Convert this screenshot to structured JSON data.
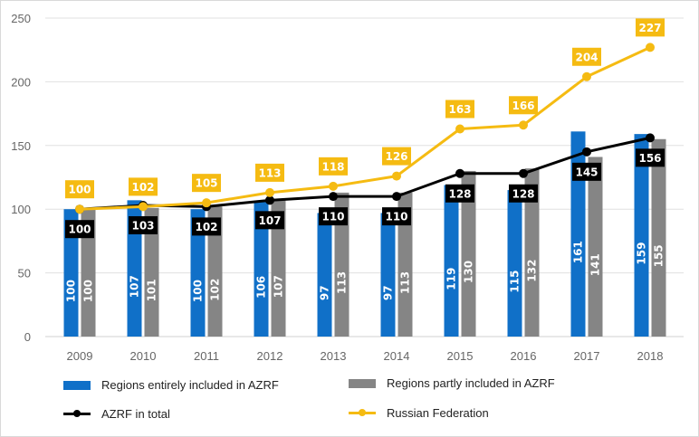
{
  "chart_data": {
    "type": "bar",
    "title": "",
    "xlabel": "",
    "ylabel": "",
    "ylim": [
      0,
      250
    ],
    "yticks": [
      0,
      50,
      100,
      150,
      200,
      250
    ],
    "grid": true,
    "legend_position": "bottom",
    "categories": [
      "2009",
      "2010",
      "2011",
      "2012",
      "2013",
      "2014",
      "2015",
      "2016",
      "2017",
      "2018"
    ],
    "series": [
      {
        "name": "Regions entirely included in AZRF",
        "kind": "bar",
        "color": "#1070c8",
        "values": [
          100,
          107,
          100,
          106,
          97,
          97,
          119,
          115,
          161,
          159
        ]
      },
      {
        "name": "Regions partly included in AZRF",
        "kind": "bar",
        "color": "#858585",
        "values": [
          100,
          101,
          102,
          107,
          113,
          113,
          130,
          132,
          141,
          155
        ]
      },
      {
        "name": "AZRF in total",
        "kind": "line",
        "color": "#000000",
        "values": [
          100,
          103,
          102,
          107,
          110,
          110,
          128,
          128,
          145,
          156
        ]
      },
      {
        "name": "Russian Federation",
        "kind": "line",
        "color": "#f5bb12",
        "values": [
          100,
          102,
          105,
          113,
          118,
          126,
          163,
          166,
          204,
          227
        ]
      }
    ]
  }
}
